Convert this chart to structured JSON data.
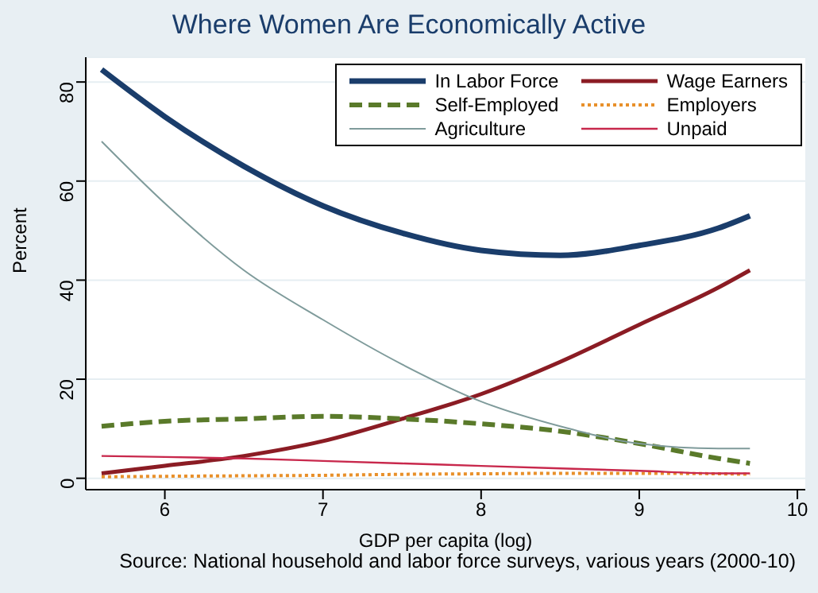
{
  "chart_data": {
    "type": "line",
    "title": "Where Women Are Economically Active",
    "xlabel": "GDP per capita (log)",
    "ylabel": "Percent",
    "annotations": [
      "Source: National household and labor force surveys, various years (2000-10)"
    ],
    "x": [
      5.6,
      6,
      6.5,
      7,
      7.5,
      8,
      8.5,
      9,
      9.5,
      9.7
    ],
    "series": [
      {
        "name": "In Labor Force",
        "color": "#1a3d6b",
        "line_style": "solid",
        "values": [
          82.5,
          73,
          63,
          55,
          49.5,
          46,
          45,
          47,
          50.5,
          53
        ]
      },
      {
        "name": "Wage Earners",
        "color": "#8b1c24",
        "line_style": "solid",
        "values": [
          1,
          2.5,
          4.5,
          7.5,
          12,
          17,
          23.5,
          31,
          38.5,
          42
        ]
      },
      {
        "name": "Self-Employed",
        "color": "#5a7a2a",
        "line_style": "dashed",
        "values": [
          10.5,
          11.5,
          12,
          12.5,
          12,
          11,
          9.5,
          7,
          4,
          3
        ]
      },
      {
        "name": "Employers",
        "color": "#e8902a",
        "line_style": "dotted",
        "values": [
          0.3,
          0.4,
          0.5,
          0.6,
          0.8,
          0.9,
          1,
          1,
          0.9,
          0.8
        ]
      },
      {
        "name": "Agriculture",
        "color": "#7f9b9b",
        "line_style": "solid",
        "values": [
          68,
          55.5,
          42,
          32,
          23,
          15.5,
          10.5,
          7,
          6,
          6
        ]
      },
      {
        "name": "Unpaid",
        "color": "#c8284c",
        "line_style": "solid",
        "values": [
          4.5,
          4.3,
          4,
          3.5,
          3,
          2.5,
          2,
          1.5,
          1,
          1
        ]
      }
    ],
    "xlim": [
      5.5,
      10.05
    ],
    "xticks": [
      6,
      7,
      8,
      9,
      10
    ],
    "ylim": [
      -2.3,
      85
    ],
    "yticks": [
      0,
      20,
      40,
      60,
      80
    ],
    "grid": "y",
    "legend": "top right",
    "marker": "none"
  }
}
